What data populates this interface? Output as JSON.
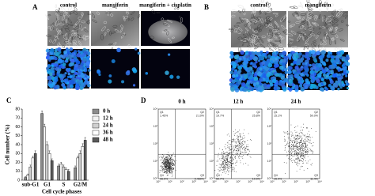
{
  "panel_a": {
    "label": "A",
    "columns": [
      "control",
      "mangiferin",
      "mangiferin + cisplatin"
    ]
  },
  "panel_b": {
    "label": "B",
    "columns": [
      "control",
      "mangiferin"
    ]
  },
  "chart_data": {
    "type": "bar",
    "panel_label": "C",
    "y_label": "Cell number (%)",
    "x_label": "Cell cycle phases",
    "categories": [
      "sub-G1",
      "G1",
      "S",
      "G2/M"
    ],
    "ylim": [
      0,
      80
    ],
    "yticks": [
      0,
      10,
      20,
      30,
      40,
      50,
      60,
      70,
      80
    ],
    "series": [
      {
        "name": "0 h",
        "color": "#8c8c8c",
        "values": [
          3,
          75,
          16,
          14
        ],
        "errors": [
          1,
          3,
          2,
          2
        ]
      },
      {
        "name": "12 h",
        "color": "#f2f2f2",
        "values": [
          6,
          60,
          18,
          25
        ],
        "errors": [
          1,
          3,
          2,
          2
        ]
      },
      {
        "name": "24 h",
        "color": "#d0d0d0",
        "values": [
          15,
          40,
          15,
          30
        ],
        "errors": [
          2,
          3,
          2,
          3
        ]
      },
      {
        "name": "36 h",
        "color": "#ffffff",
        "values": [
          25,
          30,
          12,
          38
        ],
        "errors": [
          2,
          3,
          2,
          3
        ]
      },
      {
        "name": "48 h",
        "color": "#5a5a5a",
        "values": [
          30,
          22,
          10,
          45
        ],
        "errors": [
          3,
          2,
          2,
          3
        ]
      }
    ]
  },
  "panel_d": {
    "label": "D",
    "axis_ticks": [
      "10⁰",
      "10¹",
      "10²",
      "10³",
      "10⁴"
    ],
    "plots": [
      {
        "title": "0 h",
        "quadrants": [
          {
            "name": "Q1",
            "value": "1.45%"
          },
          {
            "name": "Q2",
            "value": "2.10%"
          },
          {
            "name": "Q4",
            "value": "96.0%"
          },
          {
            "name": "Q3",
            "value": "0.450%"
          }
        ]
      },
      {
        "title": "12 h",
        "quadrants": [
          {
            "name": "Q1",
            "value": "19.7%"
          },
          {
            "name": "Q2",
            "value": "25.8%"
          },
          {
            "name": "Q4",
            "value": "50.7%"
          },
          {
            "name": "Q3",
            "value": "10.0%"
          }
        ]
      },
      {
        "title": "24 h",
        "quadrants": [
          {
            "name": "Q1",
            "value": "15.1%"
          },
          {
            "name": "Q2",
            "value": "50.0%"
          },
          {
            "name": "Q4",
            "value": "15.4%"
          },
          {
            "name": "Q3",
            "value": "11.4%"
          }
        ]
      }
    ]
  }
}
